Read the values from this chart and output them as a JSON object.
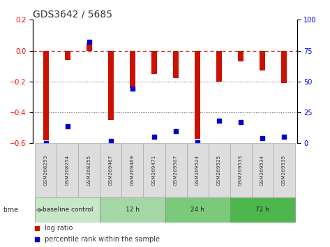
{
  "title": "GDS3642 / 5685",
  "samples": [
    "GSM268253",
    "GSM268254",
    "GSM268255",
    "GSM269467",
    "GSM269469",
    "GSM269471",
    "GSM269507",
    "GSM269524",
    "GSM269525",
    "GSM269533",
    "GSM269534",
    "GSM269535"
  ],
  "log_ratio": [
    -0.58,
    -0.06,
    0.05,
    -0.45,
    -0.24,
    -0.15,
    -0.18,
    -0.57,
    -0.2,
    -0.07,
    -0.13,
    -0.21
  ],
  "percentile_rank": [
    0,
    14,
    82,
    2,
    44,
    5,
    10,
    1,
    18,
    17,
    4,
    5
  ],
  "groups": [
    {
      "label": "baseline control",
      "start": 0,
      "end": 3
    },
    {
      "label": "12 h",
      "start": 3,
      "end": 6
    },
    {
      "label": "24 h",
      "start": 6,
      "end": 9
    },
    {
      "label": "72 h",
      "start": 9,
      "end": 12
    }
  ],
  "group_colors": [
    "#c8e6c8",
    "#a5d6a5",
    "#7bc97b",
    "#4db64d"
  ],
  "ylim_left": [
    -0.6,
    0.2
  ],
  "ylim_right": [
    0,
    100
  ],
  "yticks_left": [
    -0.6,
    -0.4,
    -0.2,
    0.0,
    0.2
  ],
  "yticks_right": [
    0,
    25,
    50,
    75,
    100
  ],
  "bar_color": "#cc1100",
  "dot_color": "#0000cc",
  "bar_width": 0.25,
  "dot_size": 22,
  "hline_color": "#cc1100",
  "dotted_line_color": "#555555",
  "bg_color": "#ffffff",
  "title_fontsize": 10,
  "tick_fontsize": 7,
  "label_fontsize": 7.5
}
